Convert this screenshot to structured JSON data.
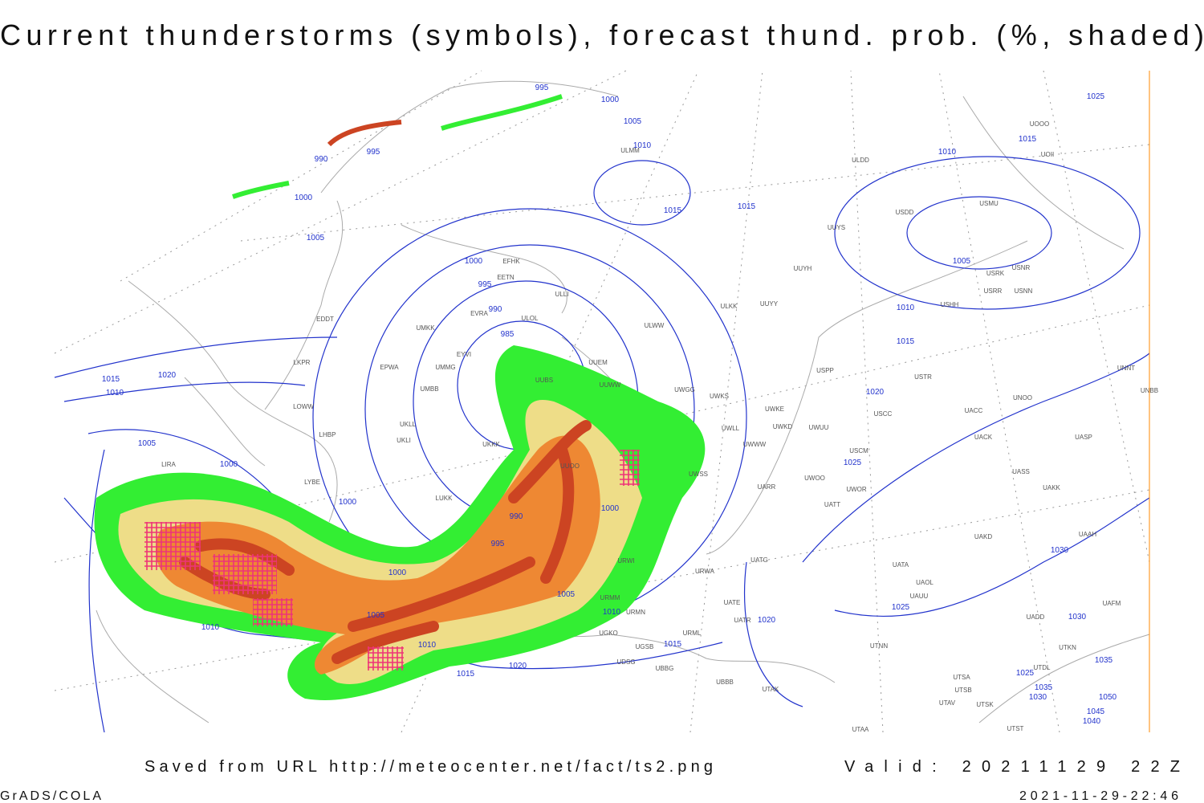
{
  "header": {
    "title": "Current thunderstorms (symbols), forecast thund. prob. (%, shaded)"
  },
  "map": {
    "isobar_labels": [
      995,
      1000,
      1005,
      1010,
      990,
      995,
      1000,
      1015,
      1015,
      1005,
      1000,
      995,
      990,
      985,
      1015,
      1020,
      1010,
      1005,
      1000,
      1000,
      990,
      1000,
      995,
      1000,
      1005,
      1005,
      1010,
      1010,
      1010,
      1015,
      1020,
      1015,
      1020,
      1025,
      1020,
      1015,
      1010,
      1005,
      1010,
      1015,
      1025,
      1030,
      1025,
      1030,
      1025,
      1035,
      1035,
      1030,
      1050,
      1045,
      1040
    ],
    "stations": [
      "EFHK",
      "EETN",
      "EVRA",
      "ULOL",
      "UMKK",
      "EYVI",
      "UMMG",
      "EPWA",
      "UMBB",
      "UUBS",
      "UUEM",
      "UUWW",
      "UKKK",
      "UKLL",
      "UKLI",
      "LUKK",
      "UUOO",
      "URWI",
      "URMM",
      "URMN",
      "UGKO",
      "UGSB",
      "UDSG",
      "UBBG",
      "LYBE",
      "LHBP",
      "LOWW",
      "LKPR",
      "EDDT",
      "LIRA",
      "UUYY",
      "ULWW",
      "ULLI",
      "ULMM",
      "ULDD",
      "UUYH",
      "ULKK",
      "UUYS",
      "USDD",
      "USMU",
      "USRR",
      "USNN",
      "USRK",
      "USNR",
      "USHH",
      "USPP",
      "USTR",
      "USCC",
      "USCM",
      "UWOO",
      "UWOR",
      "UATT",
      "UARR",
      "UAKD",
      "UATA",
      "UAOL",
      "UAUU",
      "UATG",
      "URWA",
      "UATE",
      "UATR",
      "URML",
      "UTNN",
      "UBBB",
      "UTAK",
      "UTAA",
      "UTSA",
      "UTSB",
      "UTAV",
      "UTSK",
      "UTST",
      "UNBB",
      "UNNT",
      "UNOO",
      "UACC",
      "UACK",
      "UASP",
      "UAKK",
      "UASS",
      "UAAH",
      "UAFM",
      "UADD",
      "UTDL",
      "UTKN",
      "UOOO",
      "UOII",
      "UWKE",
      "UWKD",
      "UWUU",
      "UWGG",
      "UWKS",
      "UWWW",
      "UWLL",
      "UWSS"
    ]
  },
  "footer": {
    "source": "Saved from URL http://meteocenter.net/fact/ts2.png",
    "valid": "Valid: 20211129 22Z",
    "software": "GrADS/COLA",
    "timestamp": "2021-11-29-22:46"
  }
}
